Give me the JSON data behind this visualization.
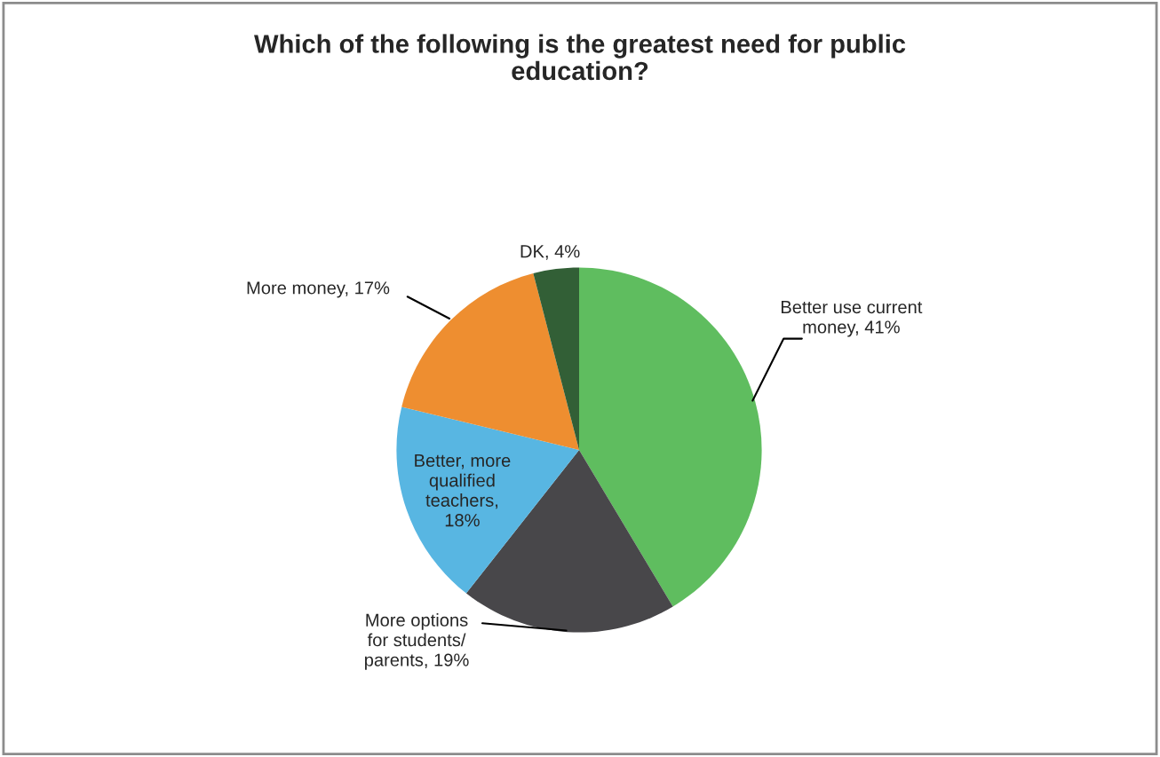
{
  "chart_data": {
    "type": "pie",
    "title": "Which of the following is the greatest need for public education?",
    "categories": [
      "Better use current money, 41%",
      "More options for students/parents, 19%",
      "Better, more qualified teachers, 18%",
      "More money, 17%",
      "DK, 4%"
    ],
    "values": [
      41,
      19,
      18,
      17,
      4
    ],
    "colors": [
      "#5fbd5f",
      "#48474a",
      "#58b6e2",
      "#ee8e30",
      "#325f36"
    ],
    "legend": false
  }
}
